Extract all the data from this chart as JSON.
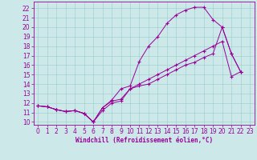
{
  "xlabel": "Windchill (Refroidissement éolien,°C)",
  "bg_color": "#cce8e8",
  "grid_color": "#99cccc",
  "line_color": "#990099",
  "xlim": [
    -0.5,
    23.5
  ],
  "ylim": [
    9.7,
    22.7
  ],
  "ytick_vals": [
    10,
    11,
    12,
    13,
    14,
    15,
    16,
    17,
    18,
    19,
    20,
    21,
    22
  ],
  "xtick_vals": [
    0,
    1,
    2,
    3,
    4,
    5,
    6,
    7,
    8,
    9,
    10,
    11,
    12,
    13,
    14,
    15,
    16,
    17,
    18,
    19,
    20,
    21,
    22,
    23
  ],
  "line1_x": [
    0,
    1,
    2,
    3,
    4,
    5,
    6,
    7,
    8,
    9,
    10,
    11,
    12,
    13,
    14,
    15,
    16,
    17,
    18,
    19,
    20,
    21,
    22
  ],
  "line1_y": [
    11.7,
    11.6,
    11.3,
    11.1,
    11.2,
    10.9,
    10.0,
    11.5,
    12.3,
    13.5,
    13.8,
    16.4,
    18.0,
    19.0,
    20.4,
    21.3,
    21.8,
    22.1,
    22.1,
    20.8,
    20.0,
    17.2,
    15.3
  ],
  "line2_x": [
    0,
    1,
    2,
    3,
    4,
    5,
    6,
    7,
    8,
    9,
    10,
    11,
    12,
    13,
    14,
    15,
    16,
    17,
    18,
    19,
    20,
    21,
    22
  ],
  "line2_y": [
    11.7,
    11.6,
    11.3,
    11.1,
    11.2,
    10.9,
    10.0,
    11.5,
    12.2,
    12.4,
    13.5,
    14.0,
    14.5,
    15.0,
    15.5,
    16.0,
    16.5,
    17.0,
    17.5,
    18.0,
    18.5,
    14.8,
    15.3
  ],
  "line3_x": [
    0,
    1,
    2,
    3,
    4,
    5,
    6,
    7,
    8,
    9,
    10,
    11,
    12,
    13,
    14,
    15,
    16,
    17,
    18,
    19,
    20,
    21,
    22
  ],
  "line3_y": [
    11.7,
    11.6,
    11.3,
    11.1,
    11.2,
    10.9,
    10.0,
    11.2,
    12.0,
    12.2,
    13.5,
    13.8,
    14.0,
    14.5,
    15.0,
    15.5,
    16.0,
    16.3,
    16.8,
    17.2,
    20.0,
    17.2,
    15.3
  ],
  "tick_fontsize": 5.5,
  "xlabel_fontsize": 5.5
}
